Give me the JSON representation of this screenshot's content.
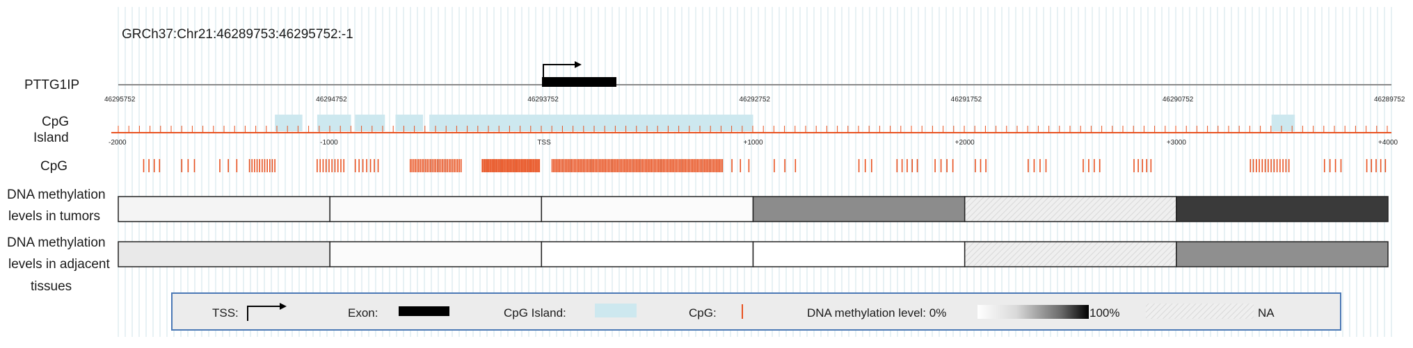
{
  "header": {
    "coordinates": "GRCh37:Chr21:46289753:46295752:-1"
  },
  "gene": {
    "name": "PTTG1IP"
  },
  "genomic_positions": [
    "46295752",
    "46294752",
    "46293752",
    "46292752",
    "46291752",
    "46290752",
    "46289752"
  ],
  "relative_ticks": [
    "-2000",
    "-1000",
    "TSS",
    "+1000",
    "+2000",
    "+3000",
    "+4000"
  ],
  "tracks": {
    "cpg_island_label_line1": "CpG",
    "cpg_island_label_line2": "Island",
    "cpg_label": "CpG",
    "tumor_label_line1": "DNA methylation",
    "tumor_label_line2": "levels in tumors",
    "adjacent_label_line1": "DNA methylation",
    "adjacent_label_line2": "levels in adjacent",
    "adjacent_label_line3": "tissues"
  },
  "methylation": {
    "tumors": [
      "#f4f4f4",
      "#fafafa",
      "#fbfbfb",
      "#8c8c8c",
      "NA",
      "#3a3a3a"
    ],
    "adjacent": [
      "#e9e9e9",
      "#fbfbfb",
      "#ffffff",
      "#ffffff",
      "NA",
      "#8f8f8f"
    ]
  },
  "legend": {
    "tss": "TSS:",
    "exon": "Exon:",
    "cpg_island": "CpG Island:",
    "cpg": "CpG:",
    "methylation_level": "DNA methylation level: 0%",
    "percent_100": "100%",
    "na": "NA"
  },
  "colors": {
    "cpg": "#e8501e",
    "island": "#cde8ef",
    "grid": "#cfe3ea",
    "exon": "#000000",
    "legend_border": "#4a78b5"
  }
}
